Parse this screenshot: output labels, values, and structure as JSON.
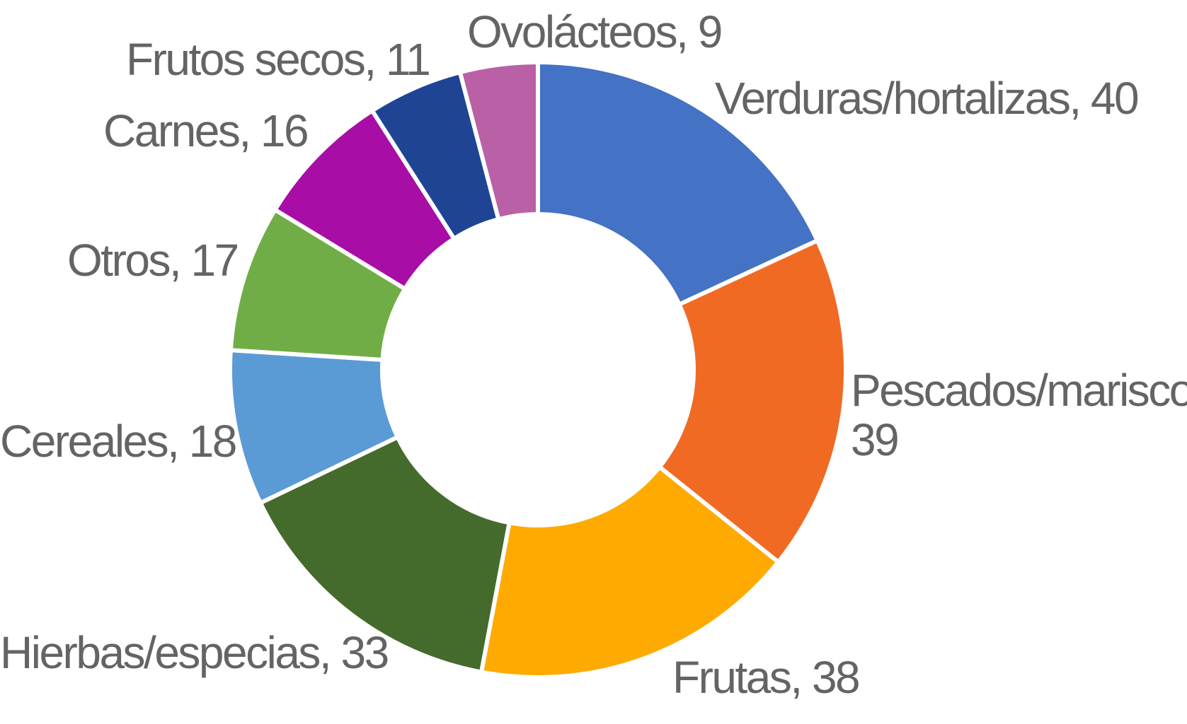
{
  "chart_data": {
    "type": "pie",
    "variant": "donut",
    "title": "",
    "slices": [
      {
        "label": "Verduras/hortalizas",
        "value": 40,
        "color": "#4472C4",
        "data_label": "Verduras/hortalizas, 40"
      },
      {
        "label": "Pescados/mariscos",
        "value": 39,
        "color": "#F06A24",
        "data_label": [
          "Pescados/mariscos,",
          "39"
        ]
      },
      {
        "label": "Frutas",
        "value": 38,
        "color": "#FFAA00",
        "data_label": "Frutas, 38"
      },
      {
        "label": "Hierbas/especias",
        "value": 33,
        "color": "#446A2C",
        "data_label": "Hierbas/especias, 33"
      },
      {
        "label": "Cereales",
        "value": 18,
        "color": "#5B9BD5",
        "data_label": "Cereales, 18"
      },
      {
        "label": "Otros",
        "value": 17,
        "color": "#70AD47",
        "data_label": "Otros, 17"
      },
      {
        "label": "Carnes",
        "value": 16,
        "color": "#A80DA5",
        "data_label": "Carnes, 16"
      },
      {
        "label": "Frutos secos",
        "value": 11,
        "color": "#1F4494",
        "data_label": "Frutos secos, 11"
      },
      {
        "label": "Ovolácteos",
        "value": 9,
        "color": "#BA60A6",
        "data_label": "Ovolácteos, 9"
      }
    ],
    "start_angle": "12 o'clock",
    "direction": "clockwise",
    "legend": "none"
  }
}
